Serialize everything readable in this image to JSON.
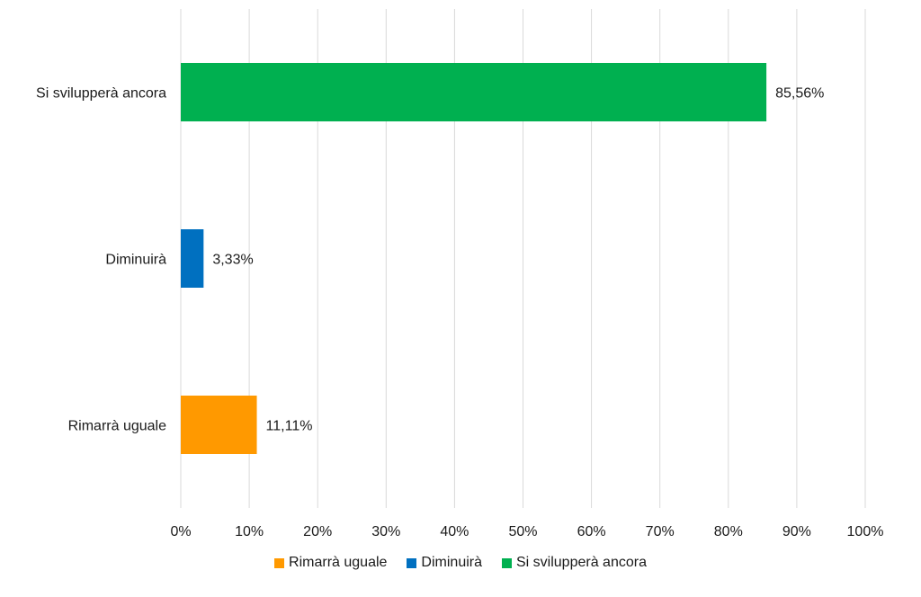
{
  "chart_data": {
    "type": "bar",
    "orientation": "horizontal",
    "categories": [
      "Si svilupperà ancora",
      "Diminuirà",
      "Rimarrà uguale"
    ],
    "values": [
      85.56,
      3.33,
      11.11
    ],
    "data_labels": [
      "85,56%",
      "3,33%",
      "11,11%"
    ],
    "colors": [
      "#00b050",
      "#0070c0",
      "#ff9900"
    ],
    "xlim": [
      0,
      100
    ],
    "x_ticks": [
      "0%",
      "10%",
      "20%",
      "30%",
      "40%",
      "50%",
      "60%",
      "70%",
      "80%",
      "90%",
      "100%"
    ],
    "grid": "vertical",
    "legend_position": "bottom",
    "legend": [
      {
        "label": "Rimarrà uguale",
        "color": "#ff9900"
      },
      {
        "label": "Diminuirà",
        "color": "#0070c0"
      },
      {
        "label": "Si svilupperà ancora",
        "color": "#00b050"
      }
    ]
  }
}
